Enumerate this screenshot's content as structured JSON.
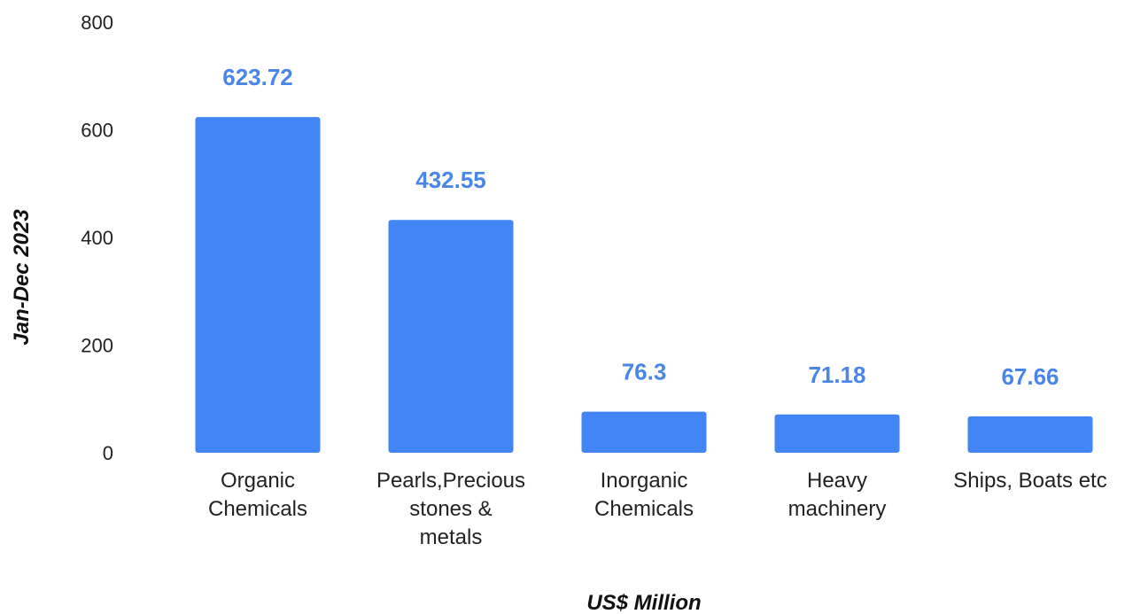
{
  "chart_data": {
    "type": "bar",
    "title": "",
    "xlabel": "US$ Million",
    "ylabel": "Jan-Dec 2023",
    "categories": [
      [
        "Organic",
        "Chemicals"
      ],
      [
        "Pearls,Precious",
        "stones &",
        "metals"
      ],
      [
        "Inorganic",
        "Chemicals"
      ],
      [
        "Heavy",
        "machinery"
      ],
      [
        "Ships, Boats etc"
      ]
    ],
    "values": [
      623.72,
      432.55,
      76.3,
      71.18,
      67.66
    ],
    "value_labels": [
      "623.72",
      "432.55",
      "76.3",
      "71.18",
      "67.66"
    ],
    "ylim": [
      0,
      800
    ],
    "yticks": [
      0,
      200,
      400,
      600,
      800
    ],
    "grid": false,
    "legend": "none",
    "bar_color": "#4285f4",
    "label_color": "#4a86e8"
  }
}
